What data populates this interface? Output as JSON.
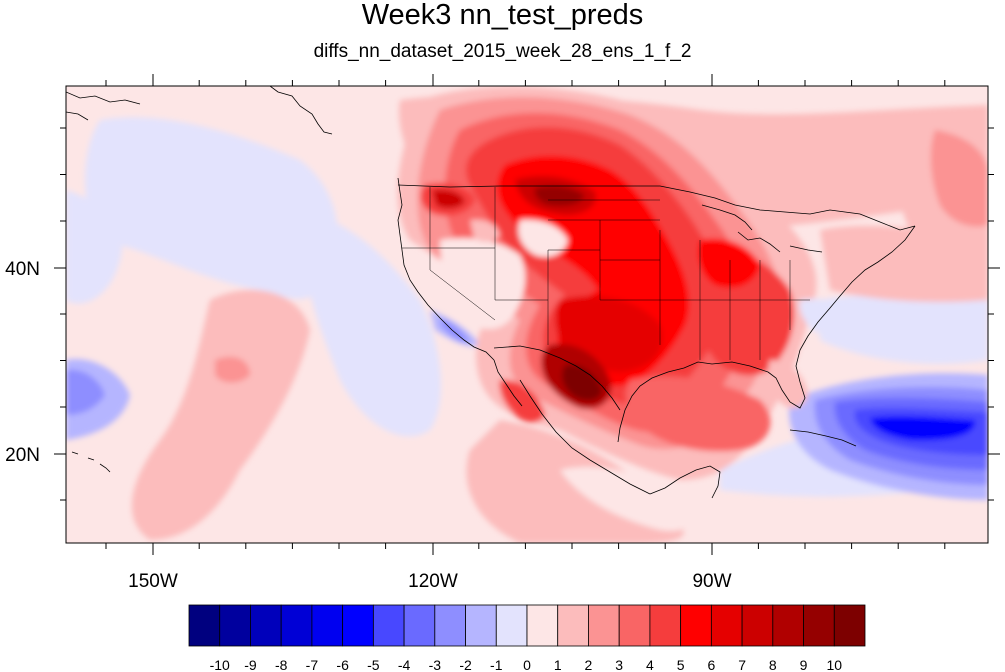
{
  "title": "Week3 nn_test_preds",
  "subtitle": "diffs_nn_dataset_2015_week_28_ens_1_f_2",
  "map": {
    "lon_labels": [
      {
        "lon": -150,
        "label": "150W"
      },
      {
        "lon": -120,
        "label": "120W"
      },
      {
        "lon": -90,
        "label": "90W"
      }
    ],
    "lat_labels": [
      {
        "lat": 40,
        "label": "40N"
      },
      {
        "lat": 20,
        "label": "20N"
      }
    ],
    "lon_range": [
      -159.3,
      -60
    ],
    "lat_range": [
      10,
      59
    ]
  },
  "colorbar": {
    "labels": [
      "-10",
      "-9",
      "-8",
      "-7",
      "-6",
      "-5",
      "-4",
      "-3",
      "-2",
      "-1",
      "0",
      "1",
      "2",
      "3",
      "4",
      "5",
      "6",
      "7",
      "8",
      "9",
      "10"
    ],
    "colors": [
      "#00007f",
      "#00009e",
      "#0000bb",
      "#0000d6",
      "#0000f0",
      "#0000ff",
      "#4848ff",
      "#6a6aff",
      "#8e8eff",
      "#b5b5ff",
      "#e3e3fd",
      "#fde6e6",
      "#fcbcbc",
      "#fb9393",
      "#f96565",
      "#f53d3d",
      "#ff0000",
      "#e50000",
      "#cc0000",
      "#b00000",
      "#950000",
      "#7d0000"
    ]
  }
}
